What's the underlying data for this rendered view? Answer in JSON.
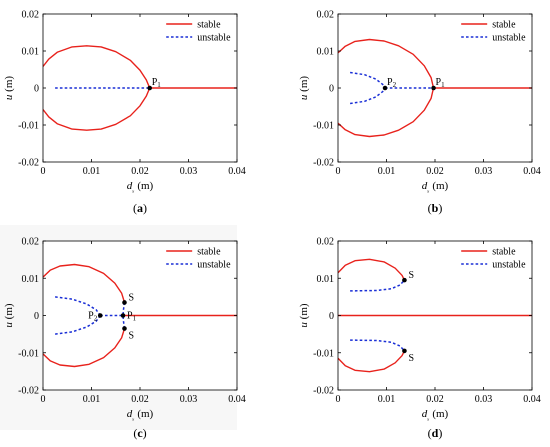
{
  "chart_data": [
    {
      "type": "line",
      "caption": "(a)",
      "xlabel": "dₓ (m)",
      "ylabel": "u (m)",
      "xlim": [
        0,
        0.04
      ],
      "ylim": [
        -0.02,
        0.02
      ],
      "xticks": [
        "0",
        "0.01",
        "0.02",
        "0.03",
        "0.04"
      ],
      "yticks": [
        "0.02",
        "0.01",
        "0",
        "-0.01",
        "-0.02"
      ],
      "legend": [
        "stable",
        "unstable"
      ],
      "series": [
        {
          "name": "stable",
          "segments": [
            [
              [
                0,
                0.0058
              ],
              [
                0.0012,
                0.0078
              ],
              [
                0.003,
                0.0097
              ],
              [
                0.006,
                0.0111
              ],
              [
                0.009,
                0.0114
              ],
              [
                0.012,
                0.0111
              ],
              [
                0.015,
                0.0098
              ],
              [
                0.018,
                0.0075
              ],
              [
                0.02,
                0.0048
              ],
              [
                0.0213,
                0.0022
              ],
              [
                0.022,
                0
              ]
            ],
            [
              [
                0,
                -0.0058
              ],
              [
                0.0012,
                -0.0078
              ],
              [
                0.003,
                -0.0097
              ],
              [
                0.006,
                -0.0111
              ],
              [
                0.009,
                -0.0114
              ],
              [
                0.012,
                -0.0111
              ],
              [
                0.015,
                -0.0098
              ],
              [
                0.018,
                -0.0075
              ],
              [
                0.02,
                -0.0048
              ],
              [
                0.0213,
                -0.0022
              ],
              [
                0.022,
                0
              ]
            ],
            [
              [
                0.022,
                0
              ],
              [
                0.04,
                0
              ]
            ]
          ]
        },
        {
          "name": "unstable",
          "segments": [
            [
              [
                0.0025,
                0
              ],
              [
                0.022,
                0
              ]
            ]
          ]
        }
      ],
      "points": [
        {
          "label": "P",
          "sub": "1",
          "x": 0.022,
          "y": 0
        }
      ]
    },
    {
      "type": "line",
      "caption": "(b)",
      "xlabel": "dₓ (m)",
      "ylabel": "u (m)",
      "xlim": [
        0,
        0.04
      ],
      "ylim": [
        -0.02,
        0.02
      ],
      "xticks": [
        "0",
        "0.01",
        "0.02",
        "0.03",
        "0.04"
      ],
      "yticks": [
        "0.02",
        "0.01",
        "0",
        "-0.01",
        "-0.02"
      ],
      "legend": [
        "stable",
        "unstable"
      ],
      "series": [
        {
          "name": "stable",
          "segments": [
            [
              [
                0,
                0.0095
              ],
              [
                0.0015,
                0.0113
              ],
              [
                0.0035,
                0.0126
              ],
              [
                0.0065,
                0.0131
              ],
              [
                0.0095,
                0.0127
              ],
              [
                0.0125,
                0.0114
              ],
              [
                0.0155,
                0.0091
              ],
              [
                0.0178,
                0.006
              ],
              [
                0.0192,
                0.0028
              ],
              [
                0.0197,
                0
              ]
            ],
            [
              [
                0,
                -0.0095
              ],
              [
                0.0015,
                -0.0113
              ],
              [
                0.0035,
                -0.0126
              ],
              [
                0.0065,
                -0.0131
              ],
              [
                0.0095,
                -0.0127
              ],
              [
                0.0125,
                -0.0114
              ],
              [
                0.0155,
                -0.0091
              ],
              [
                0.0178,
                -0.006
              ],
              [
                0.0192,
                -0.0028
              ],
              [
                0.0197,
                0
              ]
            ],
            [
              [
                0.0197,
                0
              ],
              [
                0.04,
                0
              ]
            ]
          ]
        },
        {
          "name": "unstable",
          "segments": [
            [
              [
                0.0025,
                0.0042
              ],
              [
                0.0055,
                0.0036
              ],
              [
                0.0078,
                0.0024
              ],
              [
                0.0092,
                0.001
              ],
              [
                0.0097,
                0
              ]
            ],
            [
              [
                0.0025,
                -0.0042
              ],
              [
                0.0055,
                -0.0036
              ],
              [
                0.0078,
                -0.0024
              ],
              [
                0.0092,
                -0.001
              ],
              [
                0.0097,
                0
              ]
            ],
            [
              [
                0.0097,
                0
              ],
              [
                0.0197,
                0
              ]
            ]
          ]
        }
      ],
      "points": [
        {
          "label": "P",
          "sub": "2",
          "x": 0.0097,
          "y": 0
        },
        {
          "label": "P",
          "sub": "1",
          "x": 0.0197,
          "y": 0
        }
      ]
    },
    {
      "type": "line",
      "caption": "(c)",
      "xlabel": "dₓ (m)",
      "ylabel": "u (m)",
      "xlim": [
        0,
        0.04
      ],
      "ylim": [
        -0.02,
        0.02
      ],
      "xticks": [
        "0",
        "0.01",
        "0.02",
        "0.03",
        "0.04"
      ],
      "yticks": [
        "0.02",
        "0.01",
        "0",
        "-0.01",
        "-0.02"
      ],
      "legend": [
        "stable",
        "unstable"
      ],
      "series": [
        {
          "name": "stable",
          "segments": [
            [
              [
                0,
                0.0103
              ],
              [
                0.0015,
                0.0122
              ],
              [
                0.0035,
                0.0133
              ],
              [
                0.0065,
                0.0137
              ],
              [
                0.0095,
                0.0131
              ],
              [
                0.0125,
                0.0113
              ],
              [
                0.0148,
                0.0087
              ],
              [
                0.0162,
                0.006
              ],
              [
                0.0168,
                0.0035
              ]
            ],
            [
              [
                0,
                -0.0103
              ],
              [
                0.0015,
                -0.0122
              ],
              [
                0.0035,
                -0.0133
              ],
              [
                0.0065,
                -0.0137
              ],
              [
                0.0095,
                -0.0131
              ],
              [
                0.0125,
                -0.0113
              ],
              [
                0.0148,
                -0.0087
              ],
              [
                0.0162,
                -0.006
              ],
              [
                0.0168,
                -0.0035
              ]
            ],
            [
              [
                0.0165,
                0
              ],
              [
                0.04,
                0
              ]
            ]
          ]
        },
        {
          "name": "unstable",
          "segments": [
            [
              [
                0.0168,
                0.0035
              ],
              [
                0.0166,
                0.0016
              ],
              [
                0.0165,
                0
              ]
            ],
            [
              [
                0.0168,
                -0.0035
              ],
              [
                0.0166,
                -0.0016
              ],
              [
                0.0165,
                0
              ]
            ],
            [
              [
                0.0025,
                0.005
              ],
              [
                0.006,
                0.0044
              ],
              [
                0.009,
                0.0031
              ],
              [
                0.011,
                0.0015
              ],
              [
                0.0118,
                0
              ]
            ],
            [
              [
                0.0025,
                -0.005
              ],
              [
                0.006,
                -0.0044
              ],
              [
                0.009,
                -0.0031
              ],
              [
                0.011,
                -0.0015
              ],
              [
                0.0118,
                0
              ]
            ],
            [
              [
                0.0118,
                0
              ],
              [
                0.0165,
                0
              ]
            ]
          ]
        }
      ],
      "points": [
        {
          "label": "S",
          "sub": "",
          "x": 0.0168,
          "y": 0.0035
        },
        {
          "label": "P",
          "sub": "2",
          "x": 0.0118,
          "y": 0
        },
        {
          "label": "P",
          "sub": "1",
          "x": 0.0165,
          "y": 0
        },
        {
          "label": "S",
          "sub": "",
          "x": 0.0168,
          "y": -0.0035
        }
      ]
    },
    {
      "type": "line",
      "caption": "(d)",
      "xlabel": "dₓ (m)",
      "ylabel": "u (m)",
      "xlim": [
        0,
        0.04
      ],
      "ylim": [
        -0.02,
        0.02
      ],
      "xticks": [
        "0",
        "0.01",
        "0.02",
        "0.03",
        "0.04"
      ],
      "yticks": [
        "0.02",
        "0.01",
        "0",
        "-0.01",
        "-0.02"
      ],
      "legend": [
        "stable",
        "unstable"
      ],
      "series": [
        {
          "name": "stable",
          "segments": [
            [
              [
                0,
                0.0115
              ],
              [
                0.0015,
                0.0135
              ],
              [
                0.0035,
                0.0147
              ],
              [
                0.0065,
                0.0151
              ],
              [
                0.0095,
                0.0144
              ],
              [
                0.0118,
                0.0127
              ],
              [
                0.0132,
                0.0108
              ],
              [
                0.0137,
                0.0095
              ]
            ],
            [
              [
                0,
                -0.0115
              ],
              [
                0.0015,
                -0.0135
              ],
              [
                0.0035,
                -0.0147
              ],
              [
                0.0065,
                -0.0151
              ],
              [
                0.0095,
                -0.0144
              ],
              [
                0.0118,
                -0.0127
              ],
              [
                0.0132,
                -0.0108
              ],
              [
                0.0137,
                -0.0095
              ]
            ],
            [
              [
                0,
                0
              ],
              [
                0.04,
                0
              ]
            ]
          ]
        },
        {
          "name": "unstable",
          "segments": [
            [
              [
                0.0025,
                0.0066
              ],
              [
                0.008,
                0.0067
              ],
              [
                0.011,
                0.0072
              ],
              [
                0.0128,
                0.0082
              ],
              [
                0.0137,
                0.0095
              ]
            ],
            [
              [
                0.0025,
                -0.0066
              ],
              [
                0.008,
                -0.0067
              ],
              [
                0.011,
                -0.0072
              ],
              [
                0.0128,
                -0.0082
              ],
              [
                0.0137,
                -0.0095
              ]
            ]
          ]
        }
      ],
      "points": [
        {
          "label": "S",
          "sub": "",
          "x": 0.0137,
          "y": 0.0095
        },
        {
          "label": "S",
          "sub": "",
          "x": 0.0137,
          "y": -0.0095
        }
      ]
    }
  ],
  "colors": {
    "stable": "#e8221c",
    "unstable": "#1a2fd6",
    "axis": "#000000",
    "panel_c_background": "#f7f7f7"
  }
}
